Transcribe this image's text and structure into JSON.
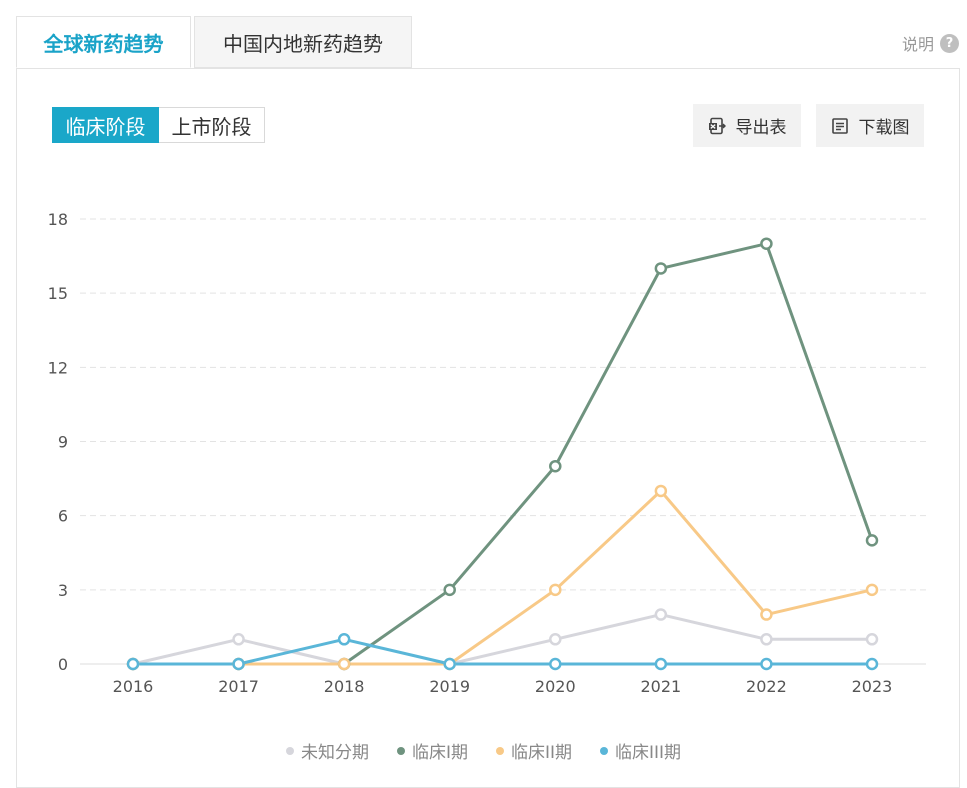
{
  "tabs": [
    {
      "label": "全球新药趋势",
      "active": true
    },
    {
      "label": "中国内地新药趋势",
      "active": false
    }
  ],
  "help": {
    "label": "说明",
    "icon": "question-circle-icon"
  },
  "stage_toggle": [
    {
      "label": "临床阶段",
      "active": true
    },
    {
      "label": "上市阶段",
      "active": false
    }
  ],
  "toolbar": {
    "export_label": "导出表",
    "export_icon": "excel-export-icon",
    "download_label": "下载图",
    "download_icon": "document-image-icon"
  },
  "colors": {
    "accent": "#1aa7c9"
  },
  "chart_data": {
    "type": "line",
    "x": [
      "2016",
      "2017",
      "2018",
      "2019",
      "2020",
      "2021",
      "2022",
      "2023"
    ],
    "yticks": [
      0,
      3,
      6,
      9,
      12,
      15,
      18
    ],
    "ylim": [
      0,
      18
    ],
    "grid": true,
    "legend_position": "bottom-center",
    "series": [
      {
        "name": "未知分期",
        "color": "#d6d6dc",
        "values": [
          0,
          1,
          0,
          0,
          1,
          2,
          1,
          1
        ]
      },
      {
        "name": "临床I期",
        "color": "#6f937f",
        "values": [
          0,
          0,
          0,
          3,
          8,
          16,
          17,
          5
        ]
      },
      {
        "name": "临床II期",
        "color": "#f8c987",
        "values": [
          0,
          0,
          0,
          0,
          3,
          7,
          2,
          3
        ]
      },
      {
        "name": "临床III期",
        "color": "#5ab6d8",
        "values": [
          0,
          0,
          1,
          0,
          0,
          0,
          0,
          0
        ]
      }
    ]
  }
}
